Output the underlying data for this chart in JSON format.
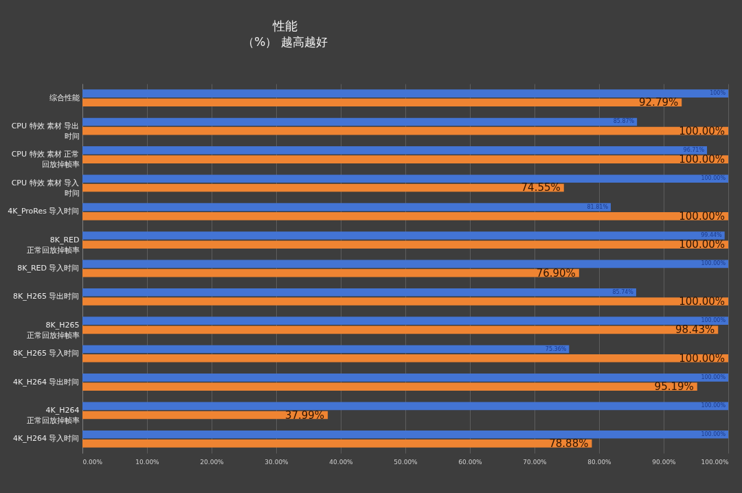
{
  "chart_data": {
    "type": "bar",
    "orientation": "horizontal",
    "title": "性能",
    "subtitle": "（%） 越高越好",
    "categories": [
      "综合性能",
      "CPU 特效 素材 导出时间",
      "CPU 特效 素材 正常回放掉帧率",
      "CPU 特效 素材 导入时间",
      "4K_ProRes 导入时间",
      "8K_RED 正常回放掉帧率",
      "8K_RED 导入时间",
      "8K_H265 导出时间",
      "8K_H265 正常回放掉帧率",
      "8K_H265 导入时间",
      "4K_H264 导出时间",
      "4K_H264 正常回放掉帧率",
      "4K_H264 导入时间"
    ],
    "series": [
      {
        "color": "#4374d4",
        "values": [
          100,
          85.87,
          96.71,
          100,
          81.81,
          99.44,
          100,
          85.74,
          100,
          75.36,
          100,
          100,
          100
        ],
        "value_labels": [
          "100%",
          "85.87%",
          "96.71%",
          "100.00%",
          "81.81%",
          "99.44%",
          "100.00%",
          "85.74%",
          "100.00%",
          "75.36%",
          "100.00%",
          "100.00%",
          "100.00%"
        ]
      },
      {
        "color": "#ef8432",
        "values": [
          92.79,
          100,
          100,
          74.55,
          100,
          100,
          76.9,
          100,
          98.43,
          100,
          95.19,
          37.99,
          78.88
        ],
        "value_labels": [
          "92.79%",
          "100.00%",
          "100.00%",
          "74.55%",
          "100.00%",
          "100.00%",
          "76.90%",
          "100.00%",
          "98.43%",
          "100.00%",
          "95.19%",
          "37.99%",
          "78.88%"
        ]
      }
    ],
    "xlim": [
      0,
      100
    ],
    "xticks": [
      {
        "value": 0,
        "label": "0.00%"
      },
      {
        "value": 10,
        "label": "10.00%"
      },
      {
        "value": 20,
        "label": "20.00%"
      },
      {
        "value": 30,
        "label": "30.00%"
      },
      {
        "value": 40,
        "label": "40.00%"
      },
      {
        "value": 50,
        "label": "50.00%"
      },
      {
        "value": 60,
        "label": "60.00%"
      },
      {
        "value": 70,
        "label": "70.00%"
      },
      {
        "value": 80,
        "label": "80.00%"
      },
      {
        "value": 90,
        "label": "90.00%"
      },
      {
        "value": 100,
        "label": "100.00%"
      }
    ],
    "grid": "x"
  }
}
